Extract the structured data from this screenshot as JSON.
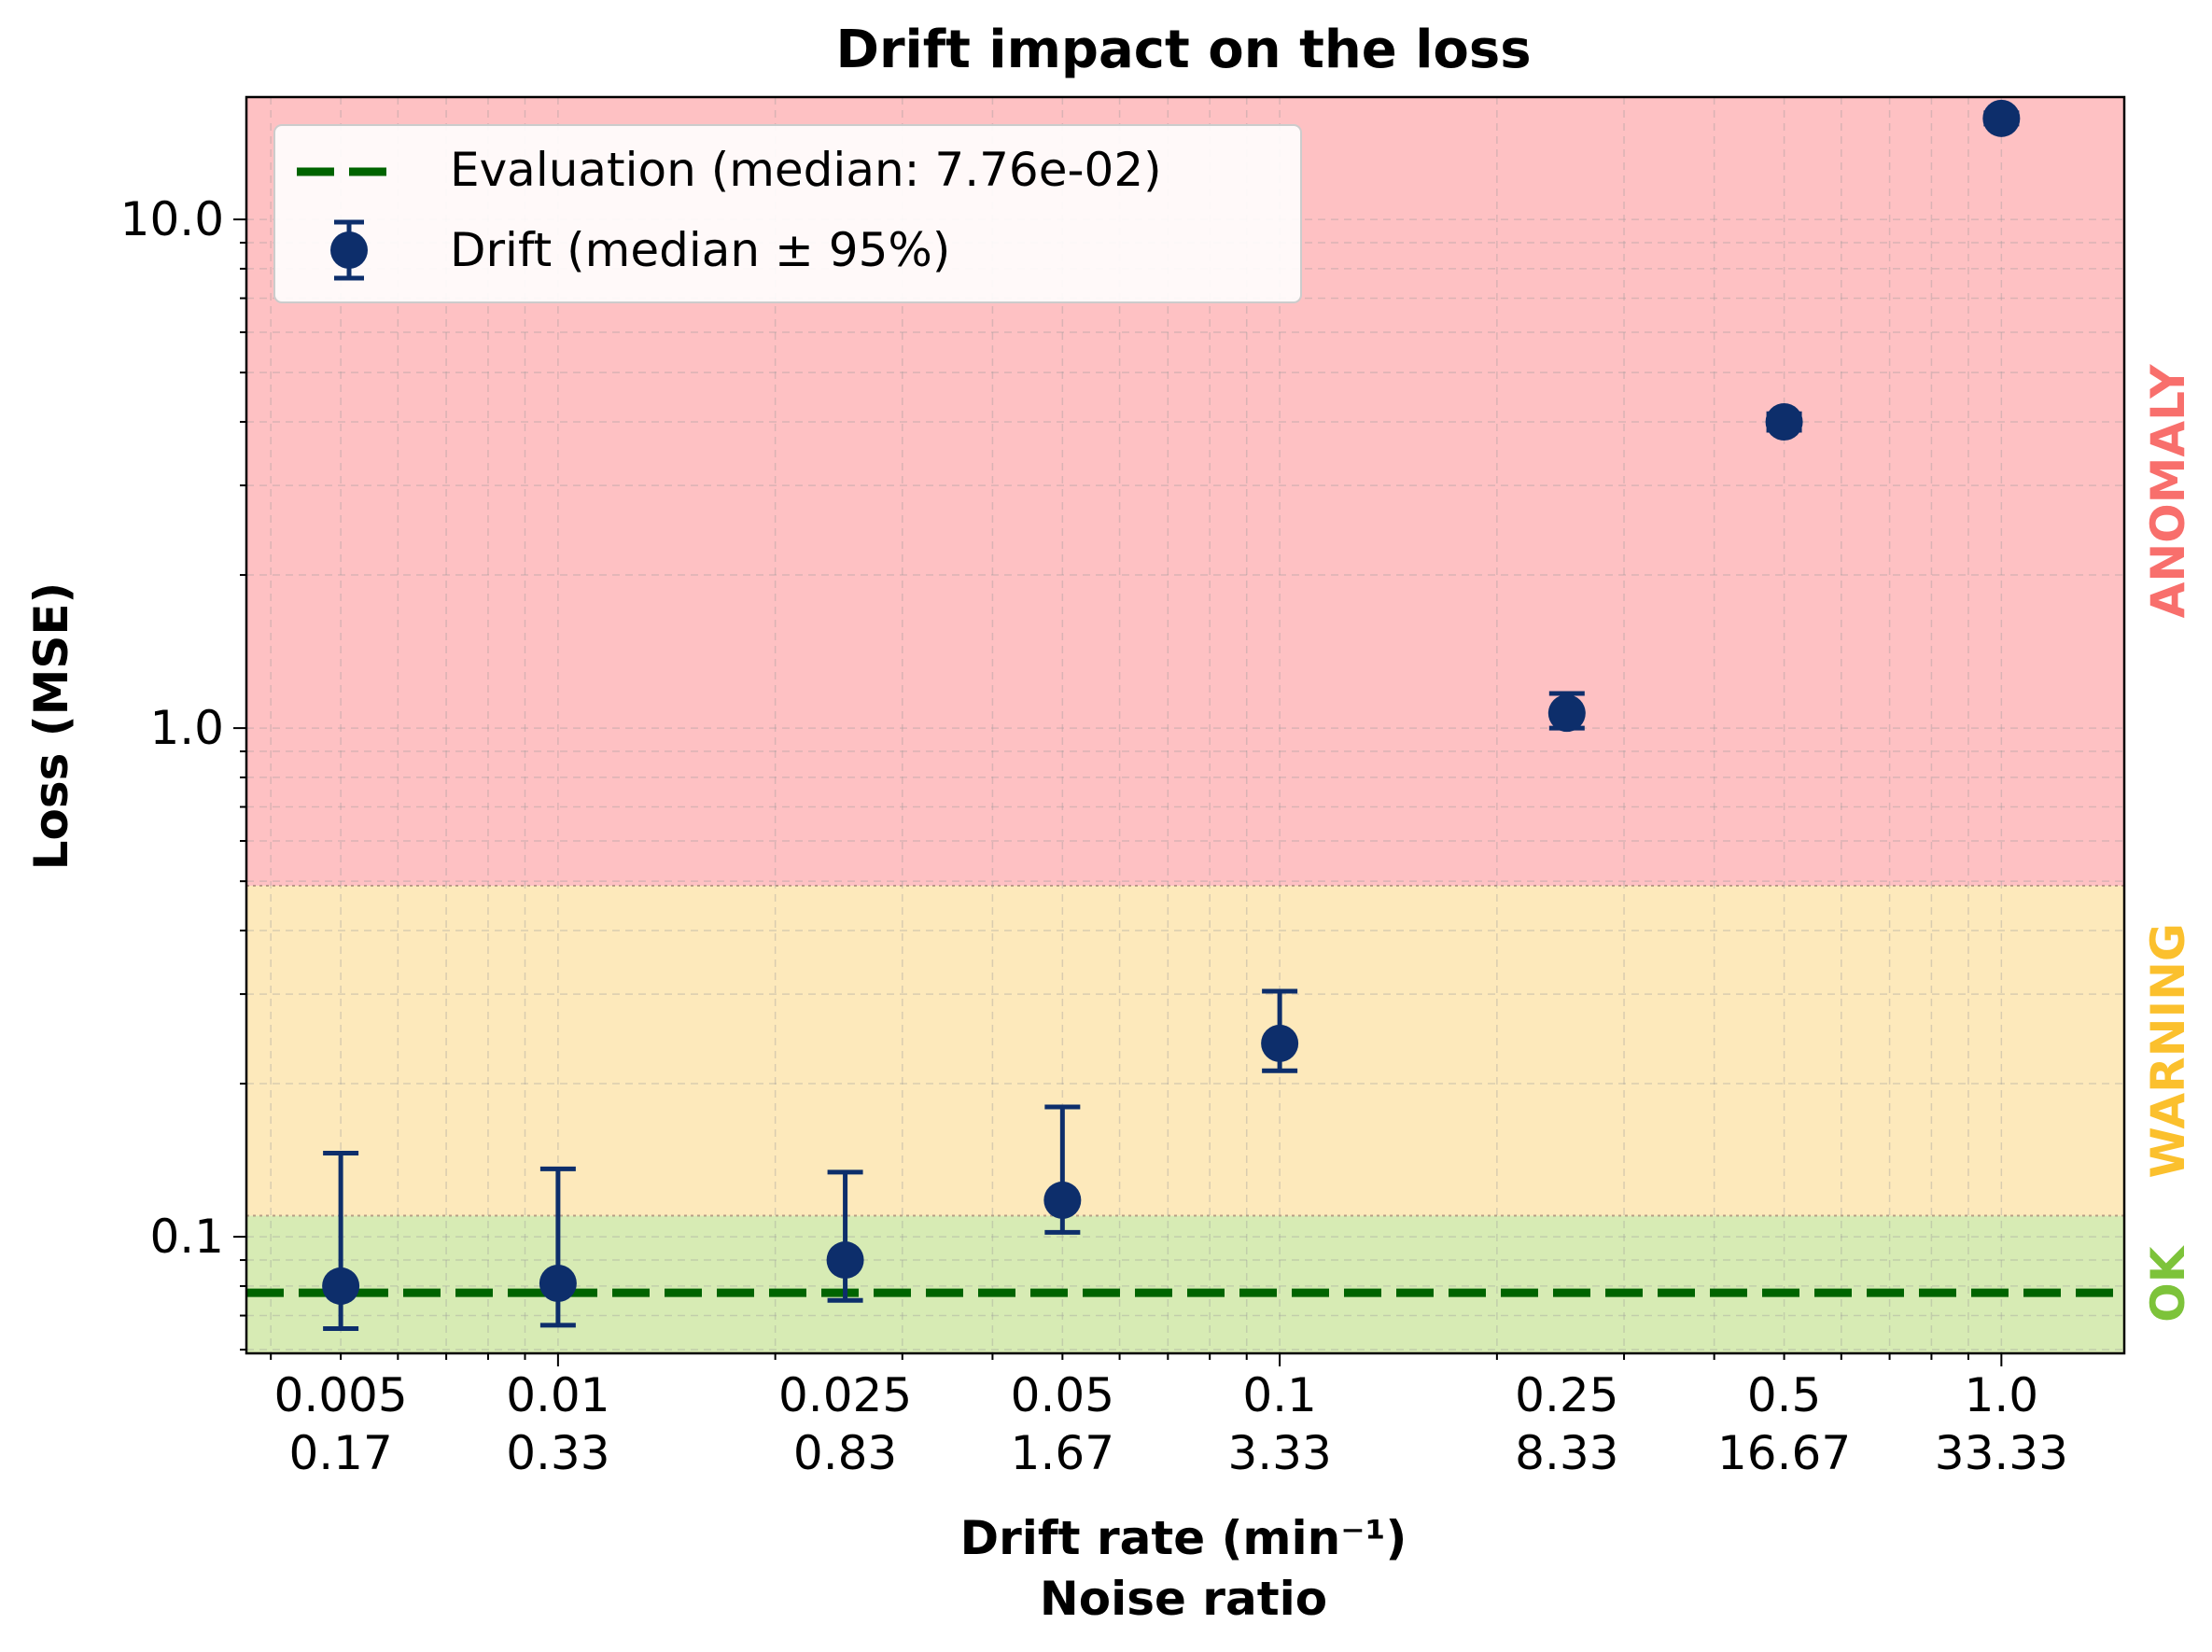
{
  "chart_data": {
    "type": "scatter",
    "title": "Drift impact on the loss",
    "xlabel_line1": "Drift rate (min⁻¹)",
    "xlabel_line2": "Noise ratio",
    "ylabel": "Loss (MSE)",
    "xscale": "log",
    "yscale": "log",
    "xlim": [
      0.0037,
      1.48
    ],
    "ylim": [
      0.059,
      17.4
    ],
    "grid": true,
    "legend_position": "top-left",
    "x_ticks": [
      {
        "value": 0.005,
        "label1": "0.005",
        "label2": "0.17"
      },
      {
        "value": 0.01,
        "label1": "0.01",
        "label2": "0.33"
      },
      {
        "value": 0.025,
        "label1": "0.025",
        "label2": "0.83"
      },
      {
        "value": 0.05,
        "label1": "0.05",
        "label2": "1.67"
      },
      {
        "value": 0.1,
        "label1": "0.1",
        "label2": "3.33"
      },
      {
        "value": 0.25,
        "label1": "0.25",
        "label2": "8.33"
      },
      {
        "value": 0.5,
        "label1": "0.5",
        "label2": "16.67"
      },
      {
        "value": 1.0,
        "label1": "1.0",
        "label2": "33.33"
      }
    ],
    "y_ticks": [
      {
        "value": 0.1,
        "label": "0.1"
      },
      {
        "value": 1.0,
        "label": "1.0"
      },
      {
        "value": 10.0,
        "label": "10.0"
      }
    ],
    "zones": [
      {
        "name": "OK",
        "y_from": 0.059,
        "y_to": 0.11,
        "fill": "#d7ebb4",
        "text_color": "#7dc33a"
      },
      {
        "name": "WARNING",
        "y_from": 0.11,
        "y_to": 0.49,
        "fill": "#fde9bb",
        "text_color": "#fbc02d"
      },
      {
        "name": "ANOMALY",
        "y_from": 0.49,
        "y_to": 17.4,
        "fill": "#fec1c3",
        "text_color": "#f86f6c"
      }
    ],
    "series": [
      {
        "name": "Drift (median ± 95%)",
        "color": "#0d2e6b",
        "points": [
          {
            "x": 0.005,
            "y": 0.08,
            "err_low": 0.066,
            "err_high": 0.146
          },
          {
            "x": 0.01,
            "y": 0.081,
            "err_low": 0.067,
            "err_high": 0.136
          },
          {
            "x": 0.025,
            "y": 0.09,
            "err_low": 0.075,
            "err_high": 0.134
          },
          {
            "x": 0.05,
            "y": 0.118,
            "err_low": 0.102,
            "err_high": 0.18
          },
          {
            "x": 0.1,
            "y": 0.24,
            "err_low": 0.212,
            "err_high": 0.304
          },
          {
            "x": 0.25,
            "y": 1.07,
            "err_low": 1.0,
            "err_high": 1.17
          },
          {
            "x": 0.5,
            "y": 4.0,
            "err_low": 3.85,
            "err_high": 4.15
          },
          {
            "x": 1.0,
            "y": 15.8,
            "err_low": 15.4,
            "err_high": 16.2
          }
        ]
      }
    ],
    "reference_line": {
      "name": "Evaluation (median: 7.76e-02)",
      "y": 0.0776,
      "color": "#006400",
      "style": "dashed"
    }
  }
}
